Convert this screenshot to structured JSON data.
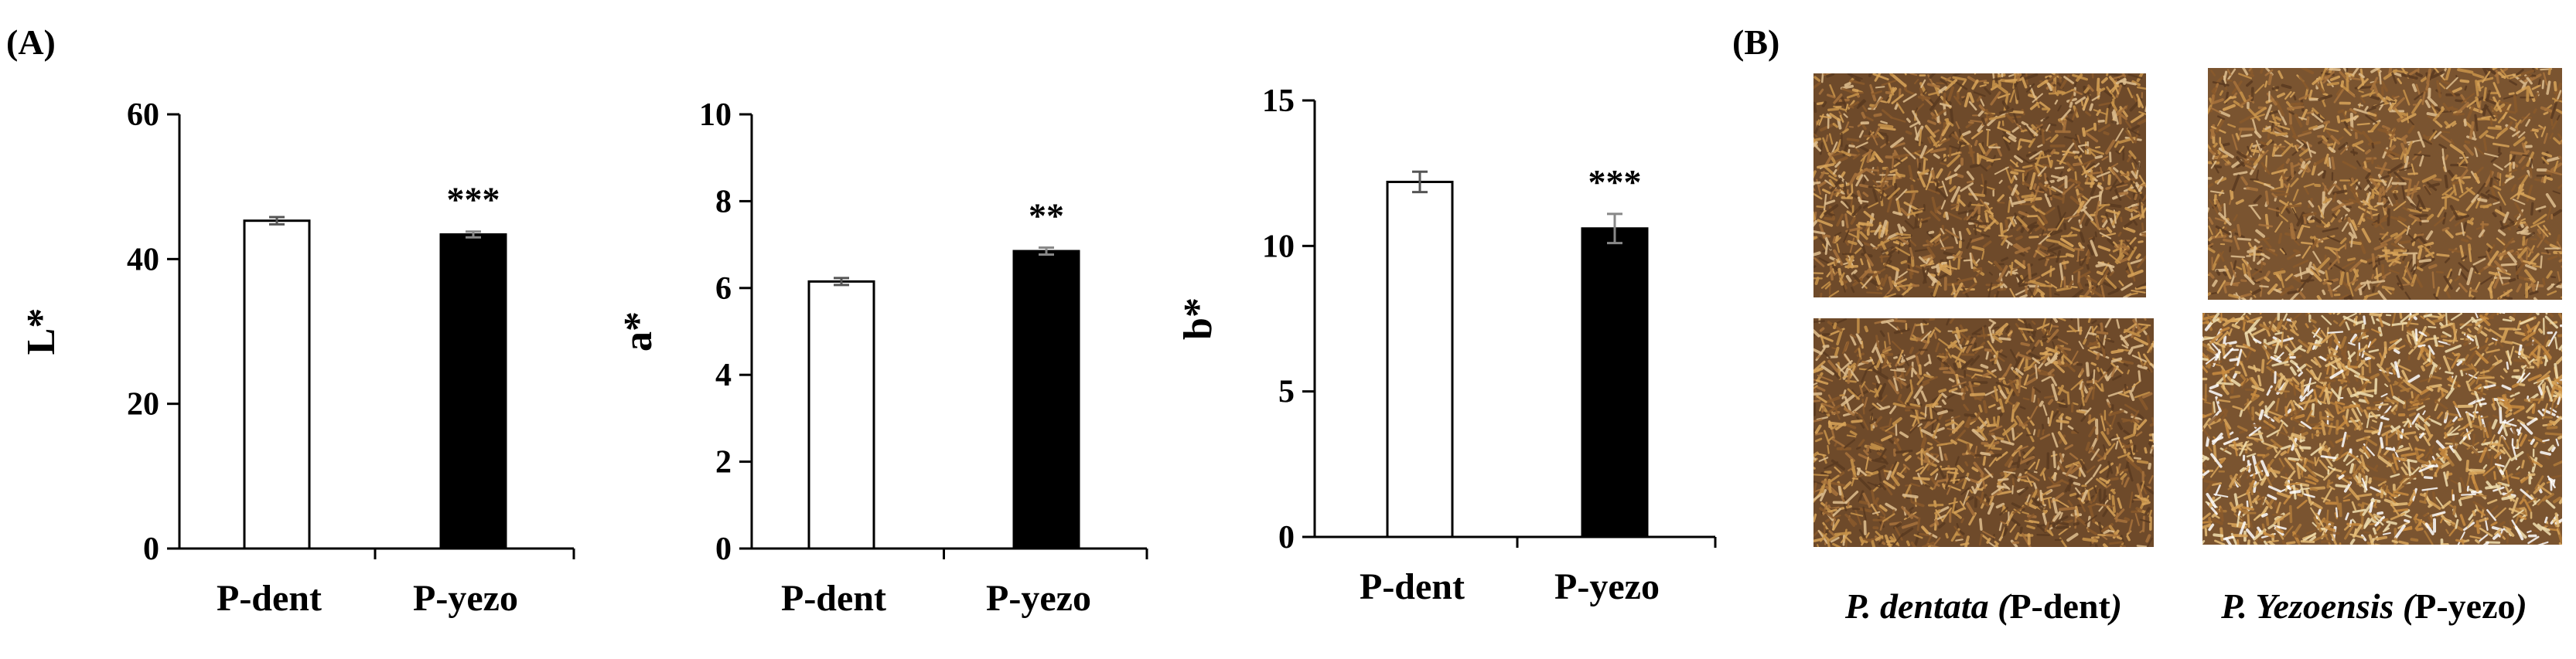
{
  "panel_labels": {
    "a": "(A)",
    "b": "(B)"
  },
  "chart_data": [
    {
      "type": "bar",
      "categories": [
        "P-dent",
        "P-yezo"
      ],
      "values": [
        45.3,
        43.4
      ],
      "errors": [
        0.5,
        0.4
      ],
      "ylabel": "L*",
      "ylim": [
        0,
        60
      ],
      "ticks": [
        0,
        20,
        40,
        60
      ],
      "significance": [
        "",
        "***"
      ],
      "bar_colors": [
        "#ffffff",
        "#000000"
      ]
    },
    {
      "type": "bar",
      "categories": [
        "P-dent",
        "P-yezo"
      ],
      "values": [
        6.15,
        6.85
      ],
      "errors": [
        0.08,
        0.08
      ],
      "ylabel": "a*",
      "ylim": [
        0,
        10
      ],
      "ticks": [
        0,
        2,
        4,
        6,
        8,
        10
      ],
      "significance": [
        "",
        "**"
      ],
      "bar_colors": [
        "#ffffff",
        "#000000"
      ]
    },
    {
      "type": "bar",
      "categories": [
        "P-dent",
        "P-yezo"
      ],
      "values": [
        12.2,
        10.6
      ],
      "errors": [
        0.35,
        0.5
      ],
      "ylabel": "b*",
      "ylim": [
        0,
        15
      ],
      "ticks": [
        0,
        5,
        10,
        15
      ],
      "significance": [
        "",
        "***"
      ],
      "bar_colors": [
        "#ffffff",
        "#000000"
      ]
    }
  ],
  "photos": {
    "left": {
      "species": "P. dentata",
      "code": "P-dent"
    },
    "right": {
      "species": "P. Yezoensis",
      "code": "P-yezo"
    },
    "colors": {
      "dent": "#6e4a2a",
      "yezo": "#7a5430",
      "fleck": "#c9944a"
    }
  }
}
